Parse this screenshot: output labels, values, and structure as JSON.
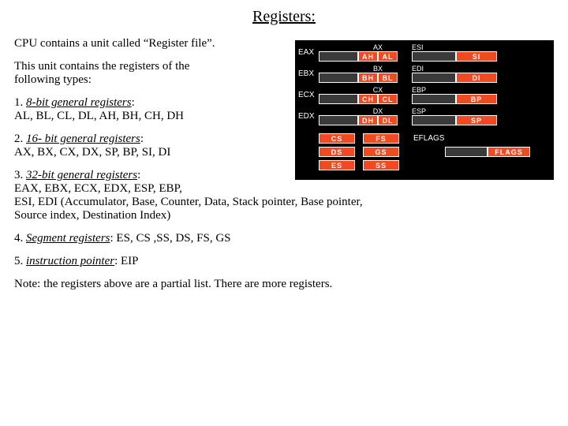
{
  "title": "Registers:",
  "intro1": "CPU contains a unit called “Register file”.",
  "intro2a": "This unit contains the registers of the",
  "intro2b": "following types:",
  "sec1": {
    "num": "1. ",
    "h": "8-bit general registers",
    "c": ":",
    "body": "AL, BL, CL, DL, AH, BH, CH, DH"
  },
  "sec2": {
    "num": "2. ",
    "h": "16- bit general registers",
    "c": ":",
    "body": "AX, BX, CX, DX, SP, BP, SI, DI"
  },
  "sec3": {
    "num": "3. ",
    "h": "32-bit general registers",
    "c": ":",
    "body1": "EAX, EBX, ECX, EDX, ESP, EBP,",
    "body2": "ESI, EDI (Accumulator, Base, Counter, Data, Stack pointer, Base pointer,",
    "body3": "Source index, Destination Index)"
  },
  "sec4": {
    "num": "4. ",
    "h": "Segment registers",
    "c": ": ES, CS ,SS, DS, FS, GS"
  },
  "sec5": {
    "num": "5. ",
    "h": "instruction pointer",
    "c": ": EIP"
  },
  "note": "Note: the registers above are a partial list. There are more registers.",
  "diag": {
    "bg": "#000000",
    "orange": "#f04a23",
    "gp": [
      {
        "e": "EAX",
        "x": "AX",
        "h": "AH",
        "l": "AL",
        "r": "ESI",
        "rr": "SI"
      },
      {
        "e": "EBX",
        "x": "BX",
        "h": "BH",
        "l": "BL",
        "r": "EDI",
        "rr": "DI"
      },
      {
        "e": "ECX",
        "x": "CX",
        "h": "CH",
        "l": "CL",
        "r": "EBP",
        "rr": "BP"
      },
      {
        "e": "EDX",
        "x": "DX",
        "h": "DH",
        "l": "DL",
        "r": "ESP",
        "rr": "SP"
      }
    ],
    "seg": [
      {
        "a": "CS",
        "b": "FS"
      },
      {
        "a": "DS",
        "b": "GS"
      },
      {
        "a": "ES",
        "b": "SS"
      }
    ],
    "flags": {
      "lbl": "EFLAGS",
      "cell": "FLAGS"
    }
  }
}
